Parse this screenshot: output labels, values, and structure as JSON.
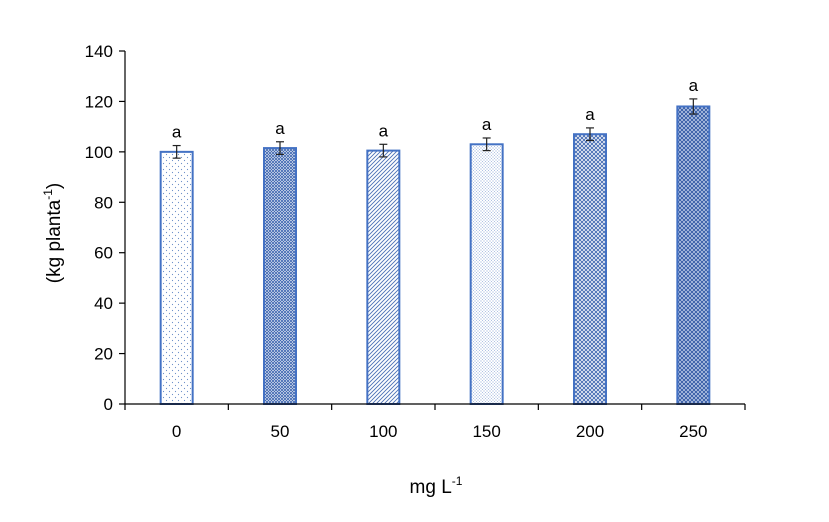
{
  "chart_data": {
    "type": "bar",
    "categories": [
      "0",
      "50",
      "100",
      "150",
      "200",
      "250"
    ],
    "values": [
      100,
      101.5,
      100.5,
      103,
      107,
      118
    ],
    "errors": [
      2.5,
      2.5,
      2.5,
      2.5,
      2.5,
      3
    ],
    "significance_letters": [
      "a",
      "a",
      "a",
      "a",
      "a",
      "a"
    ],
    "xlabel_main": "mg L",
    "xlabel_sup": "-1",
    "ylabel_main": "(kg planta",
    "ylabel_sup": "-1",
    "ylabel_close": ")",
    "ylim": [
      0,
      140
    ],
    "yticks": [
      0,
      20,
      40,
      60,
      80,
      100,
      120,
      140
    ],
    "bar_stroke": "#4472c4",
    "patterns": [
      "dots-sparse",
      "cross-dense",
      "diagonal",
      "horizontal-fine",
      "grid-medium",
      "cross-heavy"
    ],
    "grid": false,
    "legend": "none"
  }
}
